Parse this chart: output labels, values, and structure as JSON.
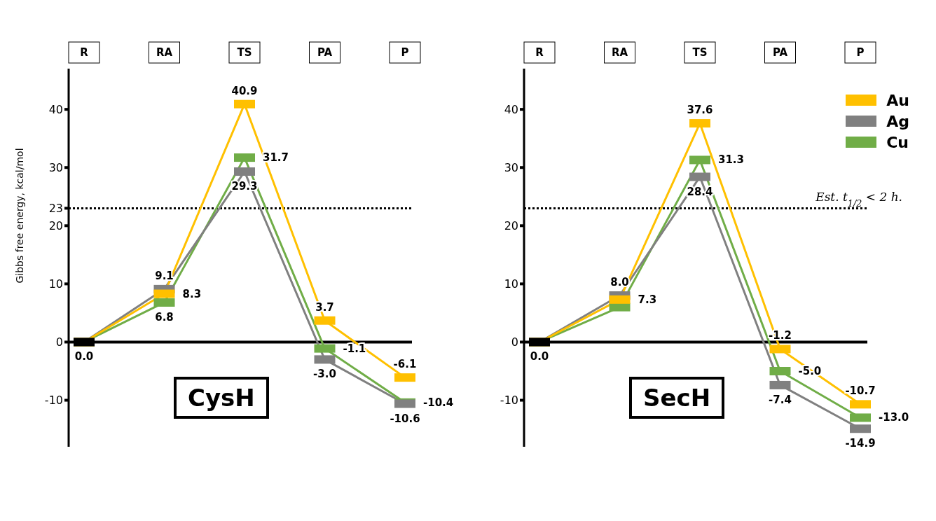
{
  "chart_data": [
    {
      "type": "line",
      "title": "CysH",
      "ylabel": "Gibbs free energy, kcal/mol",
      "categories": [
        "R",
        "RA",
        "TS",
        "PA",
        "P"
      ],
      "ylim": [
        -18,
        47
      ],
      "yticks": [
        -10,
        0,
        10,
        20,
        23,
        30,
        40
      ],
      "grid": false,
      "legend": false,
      "marker": "square",
      "series": [
        {
          "color": "#ffc000",
          "values": [
            0.0,
            8.3,
            40.9,
            3.7,
            -6.1
          ],
          "value_labels": [
            null,
            "8.3",
            "40.9",
            "3.7",
            "-6.1"
          ]
        },
        {
          "color": "#808080",
          "values": [
            0.0,
            9.1,
            29.3,
            -3.0,
            -10.6
          ],
          "value_labels": [
            null,
            "9.1",
            "29.3",
            "-3.0",
            "-10.6"
          ]
        },
        {
          "color": "#70ad47",
          "values": [
            0.0,
            6.8,
            31.7,
            -1.1,
            -10.4
          ],
          "value_labels": [
            null,
            "6.8",
            "31.7",
            "-1.1",
            "-10.4"
          ]
        },
        {
          "type": "scatter",
          "color": "#000000",
          "values": [
            0.0,
            null,
            null,
            null,
            null
          ],
          "value_labels": [
            "0.0",
            null,
            null,
            null,
            null
          ]
        }
      ],
      "ref_lines": [
        {
          "axis": "y",
          "value": 0,
          "line_style": "solid",
          "color": "#000000"
        },
        {
          "axis": "y",
          "value": 23,
          "line_style": "dotted",
          "color": "#000000"
        }
      ]
    },
    {
      "type": "line",
      "title": "SecH",
      "categories": [
        "R",
        "RA",
        "TS",
        "PA",
        "P"
      ],
      "ylim": [
        -18,
        47
      ],
      "yticks": [
        -10,
        0,
        10,
        20,
        30,
        40
      ],
      "grid": false,
      "legend": "top right",
      "marker": "square",
      "series": [
        {
          "name": "Au",
          "color": "#ffc000",
          "values": [
            0.0,
            7.3,
            37.6,
            -1.2,
            -10.7
          ],
          "value_labels": [
            null,
            "7.3",
            "37.6",
            "-1.2",
            "-10.7"
          ]
        },
        {
          "name": "Ag",
          "color": "#808080",
          "values": [
            0.0,
            8.0,
            28.4,
            -7.4,
            -14.9
          ],
          "value_labels": [
            null,
            "8.0",
            "28.4",
            "-7.4",
            "-14.9"
          ]
        },
        {
          "name": "Cu",
          "color": "#70ad47",
          "values": [
            0.0,
            6.0,
            31.3,
            -5.0,
            -13.0
          ],
          "value_labels": [
            null,
            null,
            "31.3",
            "-5.0",
            "-13.0"
          ]
        },
        {
          "type": "scatter",
          "color": "#000000",
          "values": [
            0.0,
            null,
            null,
            null,
            null
          ],
          "value_labels": [
            "0.0",
            null,
            null,
            null,
            null
          ]
        }
      ],
      "ref_lines": [
        {
          "axis": "y",
          "value": 0,
          "line_style": "solid",
          "color": "#000000"
        },
        {
          "axis": "y",
          "value": 23,
          "line_style": "dotted",
          "color": "#000000",
          "label": "Est. t$_{1/2}$ < 2 h."
        }
      ]
    }
  ]
}
